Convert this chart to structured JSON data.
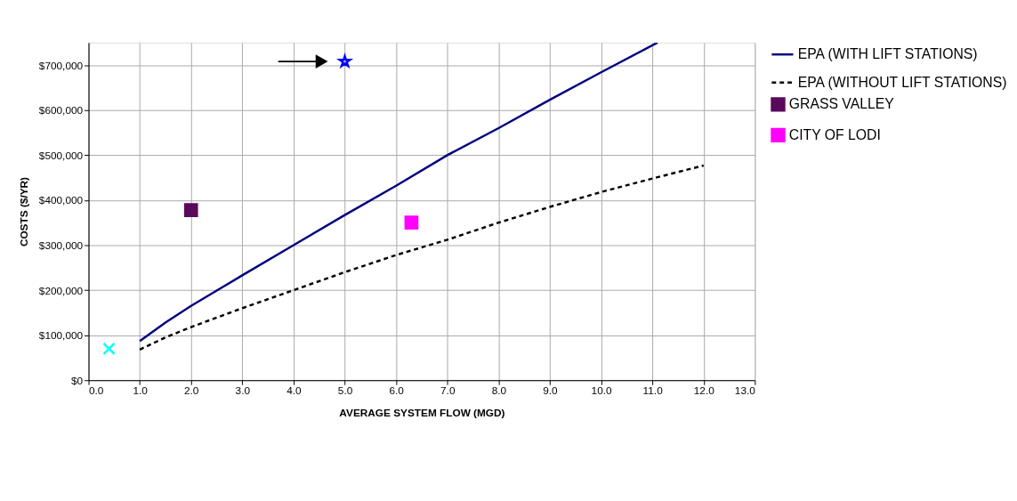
{
  "chart_data": {
    "type": "line",
    "xlabel": "AVERAGE SYSTEM FLOW (MGD)",
    "ylabel": "COSTS ($/YR)",
    "xlim": [
      0,
      13
    ],
    "xticks": [
      {
        "value": 0,
        "label": "0.0"
      },
      {
        "value": 1,
        "label": "1.0"
      },
      {
        "value": 2,
        "label": "2.0"
      },
      {
        "value": 3,
        "label": "3.0"
      },
      {
        "value": 4,
        "label": "4.0"
      },
      {
        "value": 5,
        "label": "5.0"
      },
      {
        "value": 6,
        "label": "6.0"
      },
      {
        "value": 7,
        "label": "7.0"
      },
      {
        "value": 8,
        "label": "8.0"
      },
      {
        "value": 9,
        "label": "9.0"
      },
      {
        "value": 10,
        "label": "10.0"
      },
      {
        "value": 11,
        "label": "11.0"
      },
      {
        "value": 12,
        "label": "12.0"
      },
      {
        "value": 13,
        "label": "13.0"
      }
    ],
    "ylim": [
      0,
      750000
    ],
    "yticks": [
      {
        "value": 0,
        "label": "$0"
      },
      {
        "value": 100000,
        "label": "$100,000"
      },
      {
        "value": 200000,
        "label": "$200,000"
      },
      {
        "value": 300000,
        "label": "$300,000"
      },
      {
        "value": 400000,
        "label": "$400,000"
      },
      {
        "value": 500000,
        "label": "$500,000"
      },
      {
        "value": 600000,
        "label": "$600,000"
      },
      {
        "value": 700000,
        "label": "$700,000"
      }
    ],
    "grid": true,
    "legend": "right",
    "series": [
      {
        "name": "EPA (WITH LIFT STATIONS)",
        "color": "#000080",
        "line_style": "solid",
        "marker": "none",
        "x": [
          1,
          1.5,
          2,
          3,
          4,
          5,
          6,
          7,
          8,
          9,
          10,
          11.1
        ],
        "values": [
          87000,
          128000,
          165000,
          233000,
          300000,
          367000,
          432000,
          500000,
          560000,
          623000,
          684000,
          750000
        ]
      },
      {
        "name": "EPA (WITHOUT LIFT STATIONS)",
        "color": "#000000",
        "line_style": "dashed",
        "marker": "none",
        "x": [
          1,
          1.5,
          2,
          3,
          4,
          5,
          6,
          7,
          8,
          9,
          10,
          11,
          12
        ],
        "values": [
          68000,
          95000,
          118000,
          160000,
          200000,
          240000,
          278000,
          312000,
          350000,
          385000,
          418000,
          448000,
          477000
        ]
      },
      {
        "name": "GRASS VALLEY",
        "type": "scatter",
        "color": "#5a0a5a",
        "marker": "square",
        "x": [
          2.0
        ],
        "values": [
          378000
        ]
      },
      {
        "name": "CITY OF LODI",
        "type": "scatter",
        "color": "#ff00ff",
        "marker": "square",
        "x": [
          6.3
        ],
        "values": [
          350000
        ]
      },
      {
        "type": "scatter",
        "color": "#00ffff",
        "marker": "cross",
        "x": [
          0.4
        ],
        "values": [
          70000
        ]
      },
      {
        "type": "scatter",
        "color": "#0000ff",
        "marker": "star",
        "x": [
          5.0
        ],
        "values": [
          708000
        ]
      }
    ]
  }
}
